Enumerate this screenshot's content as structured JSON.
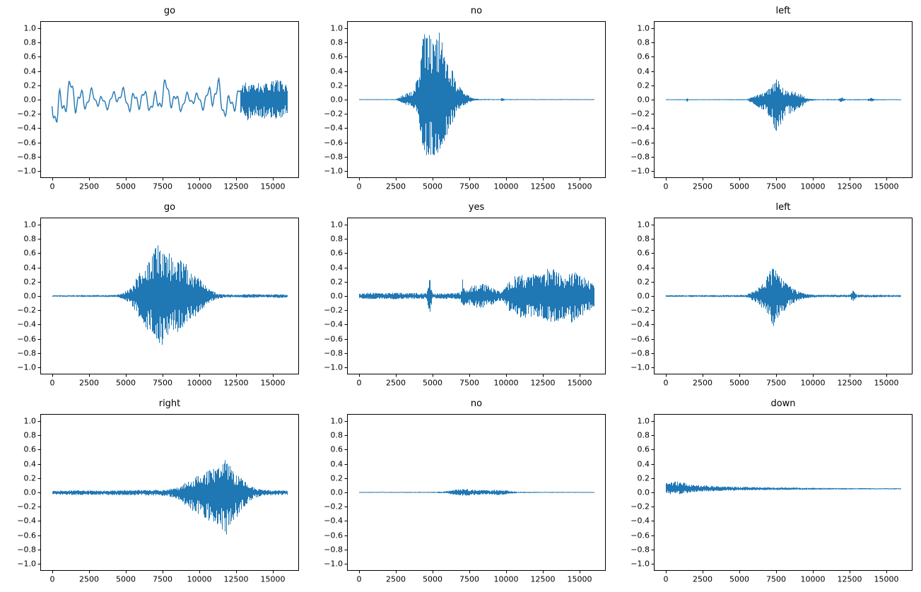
{
  "figure": {
    "background": "#ffffff",
    "description": "3x3 grid of audio waveform plots labeled with spoken keywords"
  },
  "colors": {
    "line": "#1f77b4",
    "axis": "#000000",
    "text": "#000000"
  },
  "axes": {
    "xlim": [
      -800,
      16800
    ],
    "ylim": [
      -1.1,
      1.1
    ],
    "xticks": [
      0,
      2500,
      5000,
      7500,
      10000,
      12500,
      15000
    ],
    "yticks": [
      1.0,
      0.8,
      0.6,
      0.4,
      0.2,
      0.0,
      -0.2,
      -0.4,
      -0.6,
      -0.8,
      -1.0
    ],
    "grid": false,
    "legend": "none"
  },
  "chart_data": [
    {
      "type": "line",
      "title": "go",
      "xlabel": "",
      "ylabel": "",
      "seed": 11,
      "baseline": 0,
      "asym": [
        1.0,
        1.0
      ],
      "segments": [
        {
          "style": "smooth",
          "points": [
            [
              0,
              0.28
            ],
            [
              400,
              0.45
            ],
            [
              900,
              0.3
            ],
            [
              1500,
              0.32
            ],
            [
              2500,
              0.18
            ],
            [
              3500,
              0.12
            ],
            [
              4500,
              0.15
            ],
            [
              5500,
              0.22
            ],
            [
              6500,
              0.18
            ],
            [
              7500,
              0.28
            ],
            [
              8500,
              0.18
            ],
            [
              9500,
              0.12
            ],
            [
              10500,
              0.18
            ],
            [
              11200,
              0.35
            ],
            [
              11800,
              0.25
            ],
            [
              12800,
              0.2
            ]
          ]
        },
        {
          "style": "dense",
          "points": [
            [
              12800,
              0.2
            ],
            [
              13300,
              0.3
            ],
            [
              13800,
              0.22
            ],
            [
              14300,
              0.28
            ],
            [
              14800,
              0.25
            ],
            [
              15300,
              0.3
            ],
            [
              15800,
              0.22
            ],
            [
              16000,
              0.22
            ]
          ]
        }
      ]
    },
    {
      "type": "line",
      "title": "no",
      "xlabel": "",
      "ylabel": "",
      "seed": 22,
      "baseline": 0,
      "asym": [
        1.0,
        0.8
      ],
      "segments": [
        {
          "style": "dense",
          "points": [
            [
              0,
              0.006
            ],
            [
              2500,
              0.008
            ],
            [
              2800,
              0.04
            ],
            [
              3200,
              0.1
            ],
            [
              3600,
              0.13
            ],
            [
              4000,
              0.3
            ],
            [
              4300,
              0.85
            ],
            [
              4600,
              1.0
            ],
            [
              5000,
              0.98
            ],
            [
              5400,
              1.0
            ],
            [
              5700,
              0.8
            ],
            [
              6000,
              0.62
            ],
            [
              6300,
              0.45
            ],
            [
              6600,
              0.3
            ],
            [
              6900,
              0.18
            ],
            [
              7200,
              0.1
            ],
            [
              7500,
              0.05
            ],
            [
              7800,
              0.02
            ],
            [
              8200,
              0.01
            ],
            [
              9600,
              0.008
            ],
            [
              9750,
              0.035
            ],
            [
              9900,
              0.008
            ],
            [
              16000,
              0.007
            ]
          ]
        }
      ]
    },
    {
      "type": "line",
      "title": "left",
      "xlabel": "",
      "ylabel": "",
      "seed": 33,
      "baseline": 0,
      "asym": [
        0.65,
        1.0
      ],
      "segments": [
        {
          "style": "dense",
          "points": [
            [
              0,
              0.008
            ],
            [
              1350,
              0.008
            ],
            [
              1450,
              0.035
            ],
            [
              1550,
              0.008
            ],
            [
              5500,
              0.01
            ],
            [
              5900,
              0.06
            ],
            [
              6300,
              0.12
            ],
            [
              6800,
              0.18
            ],
            [
              7200,
              0.3
            ],
            [
              7500,
              0.5
            ],
            [
              7800,
              0.35
            ],
            [
              8200,
              0.22
            ],
            [
              8700,
              0.18
            ],
            [
              9200,
              0.12
            ],
            [
              9500,
              0.05
            ],
            [
              9800,
              0.02
            ],
            [
              10200,
              0.01
            ],
            [
              11700,
              0.01
            ],
            [
              11950,
              0.06
            ],
            [
              12200,
              0.01
            ],
            [
              13700,
              0.01
            ],
            [
              13950,
              0.045
            ],
            [
              14200,
              0.01
            ],
            [
              16000,
              0.008
            ]
          ]
        }
      ]
    },
    {
      "type": "line",
      "title": "go",
      "xlabel": "",
      "ylabel": "",
      "seed": 44,
      "baseline": 0,
      "asym": [
        1.0,
        0.95
      ],
      "segments": [
        {
          "style": "dense",
          "points": [
            [
              0,
              0.012
            ],
            [
              4300,
              0.015
            ],
            [
              4800,
              0.04
            ],
            [
              5300,
              0.12
            ],
            [
              5800,
              0.28
            ],
            [
              6300,
              0.45
            ],
            [
              6800,
              0.6
            ],
            [
              7200,
              0.75
            ],
            [
              7500,
              0.72
            ],
            [
              7900,
              0.62
            ],
            [
              8400,
              0.55
            ],
            [
              8900,
              0.5
            ],
            [
              9400,
              0.38
            ],
            [
              9900,
              0.28
            ],
            [
              10400,
              0.16
            ],
            [
              10800,
              0.08
            ],
            [
              11300,
              0.04
            ],
            [
              11800,
              0.025
            ],
            [
              12500,
              0.02
            ],
            [
              13500,
              0.03
            ],
            [
              14500,
              0.02
            ],
            [
              15500,
              0.03
            ],
            [
              16000,
              0.02
            ]
          ]
        }
      ]
    },
    {
      "type": "line",
      "title": "yes",
      "xlabel": "",
      "ylabel": "",
      "seed": 55,
      "baseline": 0,
      "asym": [
        1.0,
        1.0
      ],
      "segments": [
        {
          "style": "dense",
          "points": [
            [
              0,
              0.035
            ],
            [
              800,
              0.05
            ],
            [
              1600,
              0.04
            ],
            [
              2400,
              0.05
            ],
            [
              3200,
              0.04
            ],
            [
              4000,
              0.045
            ],
            [
              4600,
              0.04
            ],
            [
              4800,
              0.26
            ],
            [
              5000,
              0.04
            ],
            [
              5600,
              0.04
            ],
            [
              6200,
              0.045
            ],
            [
              6900,
              0.05
            ],
            [
              7050,
              0.27
            ],
            [
              7200,
              0.1
            ],
            [
              7500,
              0.13
            ],
            [
              7900,
              0.17
            ],
            [
              8300,
              0.2
            ],
            [
              8700,
              0.16
            ],
            [
              9100,
              0.12
            ],
            [
              9500,
              0.07
            ],
            [
              9800,
              0.08
            ],
            [
              10100,
              0.18
            ],
            [
              10500,
              0.28
            ],
            [
              11000,
              0.32
            ],
            [
              11500,
              0.3
            ],
            [
              12000,
              0.33
            ],
            [
              12400,
              0.3
            ],
            [
              12800,
              0.38
            ],
            [
              13200,
              0.42
            ],
            [
              13600,
              0.36
            ],
            [
              14000,
              0.32
            ],
            [
              14400,
              0.38
            ],
            [
              14800,
              0.32
            ],
            [
              15200,
              0.28
            ],
            [
              15600,
              0.24
            ],
            [
              16000,
              0.14
            ]
          ]
        }
      ]
    },
    {
      "type": "line",
      "title": "left",
      "xlabel": "",
      "ylabel": "",
      "seed": 66,
      "baseline": 0,
      "asym": [
        1.0,
        1.0
      ],
      "segments": [
        {
          "style": "dense",
          "points": [
            [
              0,
              0.012
            ],
            [
              5400,
              0.015
            ],
            [
              5800,
              0.05
            ],
            [
              6200,
              0.1
            ],
            [
              6600,
              0.18
            ],
            [
              7000,
              0.32
            ],
            [
              7250,
              0.46
            ],
            [
              7500,
              0.38
            ],
            [
              7800,
              0.28
            ],
            [
              8200,
              0.18
            ],
            [
              8600,
              0.12
            ],
            [
              9000,
              0.07
            ],
            [
              9400,
              0.04
            ],
            [
              9800,
              0.025
            ],
            [
              10400,
              0.018
            ],
            [
              12500,
              0.018
            ],
            [
              12750,
              0.09
            ],
            [
              13000,
              0.02
            ],
            [
              16000,
              0.015
            ]
          ]
        }
      ]
    },
    {
      "type": "line",
      "title": "right",
      "xlabel": "",
      "ylabel": "",
      "seed": 77,
      "baseline": 0,
      "asym": [
        0.75,
        1.0
      ],
      "segments": [
        {
          "style": "dense",
          "points": [
            [
              0,
              0.03
            ],
            [
              1500,
              0.04
            ],
            [
              3000,
              0.035
            ],
            [
              4500,
              0.04
            ],
            [
              6000,
              0.045
            ],
            [
              7500,
              0.05
            ],
            [
              8300,
              0.08
            ],
            [
              8800,
              0.14
            ],
            [
              9300,
              0.22
            ],
            [
              9800,
              0.3
            ],
            [
              10300,
              0.36
            ],
            [
              10800,
              0.44
            ],
            [
              11300,
              0.52
            ],
            [
              11800,
              0.65
            ],
            [
              12200,
              0.45
            ],
            [
              12600,
              0.35
            ],
            [
              13000,
              0.25
            ],
            [
              13400,
              0.14
            ],
            [
              13800,
              0.08
            ],
            [
              14300,
              0.05
            ],
            [
              15000,
              0.04
            ],
            [
              16000,
              0.035
            ]
          ]
        }
      ]
    },
    {
      "type": "line",
      "title": "no",
      "xlabel": "",
      "ylabel": "",
      "seed": 88,
      "baseline": 0,
      "asym": [
        1.0,
        1.0
      ],
      "segments": [
        {
          "style": "dense",
          "points": [
            [
              0,
              0.006
            ],
            [
              5200,
              0.008
            ],
            [
              5800,
              0.015
            ],
            [
              6300,
              0.03
            ],
            [
              6800,
              0.045
            ],
            [
              7300,
              0.05
            ],
            [
              7800,
              0.04
            ],
            [
              8300,
              0.035
            ],
            [
              8800,
              0.03
            ],
            [
              9300,
              0.04
            ],
            [
              9800,
              0.035
            ],
            [
              10300,
              0.02
            ],
            [
              10800,
              0.01
            ],
            [
              11500,
              0.008
            ],
            [
              16000,
              0.006
            ]
          ]
        }
      ]
    },
    {
      "type": "line",
      "title": "down",
      "xlabel": "",
      "ylabel": "",
      "seed": 99,
      "baseline": 0.05,
      "asym": [
        1.0,
        0.8
      ],
      "segments": [
        {
          "style": "dense",
          "points": [
            [
              0,
              0.08
            ],
            [
              400,
              0.1
            ],
            [
              800,
              0.11
            ],
            [
              1200,
              0.09
            ],
            [
              1600,
              0.07
            ],
            [
              2200,
              0.055
            ],
            [
              3000,
              0.045
            ],
            [
              4000,
              0.035
            ],
            [
              5000,
              0.03
            ],
            [
              6500,
              0.025
            ],
            [
              8000,
              0.02
            ],
            [
              10000,
              0.015
            ],
            [
              12000,
              0.012
            ],
            [
              14000,
              0.01
            ],
            [
              16000,
              0.009
            ]
          ]
        }
      ]
    }
  ]
}
